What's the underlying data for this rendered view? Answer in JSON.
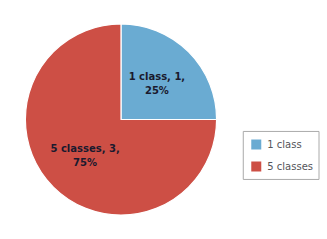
{
  "chart_data": {
    "type": "pie",
    "categories": [
      "1 class",
      "5 classes"
    ],
    "values": [
      25,
      75
    ],
    "value_labels": [
      "1 class, 1,\n25%",
      "5 classes, 3,\n75%"
    ],
    "colors": [
      "#6aabd2",
      "#cd4f45"
    ],
    "data_labels": true,
    "legend": "right"
  }
}
